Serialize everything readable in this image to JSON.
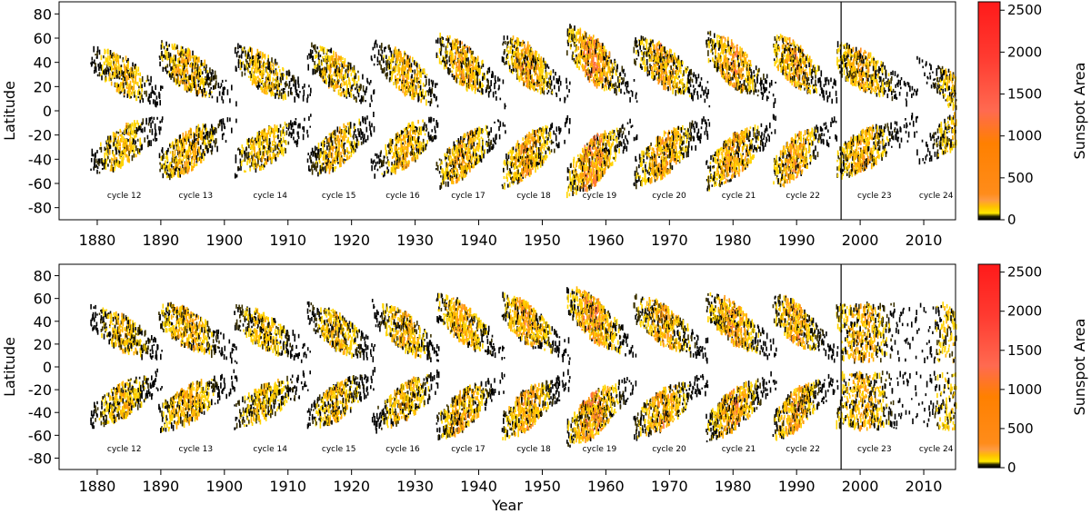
{
  "chart_data": [
    {
      "type": "heatmap",
      "panel": "top",
      "title": "",
      "xlabel": "",
      "ylabel": "Latitude",
      "xlim": [
        1874,
        2015
      ],
      "ylim": [
        -90,
        90
      ],
      "x_ticks": [
        1880,
        1890,
        1900,
        1910,
        1920,
        1930,
        1940,
        1950,
        1960,
        1970,
        1980,
        1990,
        2000,
        2010
      ],
      "y_ticks": [
        80,
        60,
        40,
        20,
        0,
        -20,
        -40,
        -60,
        -80
      ],
      "vertical_line_year": 1997,
      "colorbar": {
        "label": "Sunspot Area",
        "ticks": [
          0,
          500,
          1000,
          1500,
          2000,
          2500
        ],
        "range": [
          0,
          2600
        ]
      },
      "cycles": [
        {
          "label": "cycle 12",
          "start": 1878.9,
          "end": 1890.2,
          "peak": 1883.9,
          "amplitude": 0.75,
          "max_lat": 40
        },
        {
          "label": "cycle 13",
          "start": 1889.6,
          "end": 1902.0,
          "peak": 1894.1,
          "amplitude": 0.85,
          "max_lat": 42
        },
        {
          "label": "cycle 14",
          "start": 1901.5,
          "end": 1913.5,
          "peak": 1906.2,
          "amplitude": 0.7,
          "max_lat": 40
        },
        {
          "label": "cycle 15",
          "start": 1913.0,
          "end": 1923.6,
          "peak": 1917.6,
          "amplitude": 0.8,
          "max_lat": 42
        },
        {
          "label": "cycle 16",
          "start": 1923.0,
          "end": 1933.7,
          "peak": 1928.4,
          "amplitude": 0.85,
          "max_lat": 45
        },
        {
          "label": "cycle 17",
          "start": 1933.2,
          "end": 1944.1,
          "peak": 1937.4,
          "amplitude": 0.95,
          "max_lat": 50
        },
        {
          "label": "cycle 18",
          "start": 1943.6,
          "end": 1954.3,
          "peak": 1947.5,
          "amplitude": 1.0,
          "max_lat": 48
        },
        {
          "label": "cycle 19",
          "start": 1953.8,
          "end": 1964.8,
          "peak": 1957.9,
          "amplitude": 1.2,
          "max_lat": 55
        },
        {
          "label": "cycle 20",
          "start": 1964.3,
          "end": 1976.2,
          "peak": 1968.9,
          "amplitude": 0.95,
          "max_lat": 48
        },
        {
          "label": "cycle 21",
          "start": 1975.7,
          "end": 1986.7,
          "peak": 1979.9,
          "amplitude": 1.05,
          "max_lat": 50
        },
        {
          "label": "cycle 22",
          "start": 1986.2,
          "end": 1996.4,
          "peak": 1989.6,
          "amplitude": 1.0,
          "max_lat": 48
        },
        {
          "label": "cycle 23",
          "start": 1996.2,
          "end": 2008.9,
          "peak": 2000.3,
          "amplitude": 0.85,
          "max_lat": 40
        },
        {
          "label": "cycle 24",
          "start": 2008.5,
          "end": 2016.0,
          "peak": 2014.0,
          "amplitude": 0.6,
          "max_lat": 35
        }
      ]
    },
    {
      "type": "heatmap",
      "panel": "bottom",
      "title": "",
      "xlabel": "Year",
      "ylabel": "Latitude",
      "xlim": [
        1874,
        2015
      ],
      "ylim": [
        -90,
        90
      ],
      "x_ticks": [
        1880,
        1890,
        1900,
        1910,
        1920,
        1930,
        1940,
        1950,
        1960,
        1970,
        1980,
        1990,
        2000,
        2010
      ],
      "y_ticks": [
        80,
        60,
        40,
        20,
        0,
        -20,
        -40,
        -60,
        -80
      ],
      "vertical_line_year": 1997,
      "scattered_after": 1997,
      "colorbar": {
        "label": "Sunspot Area",
        "ticks": [
          0,
          500,
          1000,
          1500,
          2000,
          2500
        ],
        "range": [
          0,
          2600
        ]
      },
      "cycles": [
        {
          "label": "cycle 12",
          "start": 1878.9,
          "end": 1890.2,
          "peak": 1883.9,
          "amplitude": 0.75,
          "max_lat": 40
        },
        {
          "label": "cycle 13",
          "start": 1889.6,
          "end": 1902.0,
          "peak": 1894.1,
          "amplitude": 0.85,
          "max_lat": 42
        },
        {
          "label": "cycle 14",
          "start": 1901.5,
          "end": 1913.5,
          "peak": 1906.2,
          "amplitude": 0.7,
          "max_lat": 40
        },
        {
          "label": "cycle 15",
          "start": 1913.0,
          "end": 1923.6,
          "peak": 1917.6,
          "amplitude": 0.8,
          "max_lat": 42
        },
        {
          "label": "cycle 16",
          "start": 1923.0,
          "end": 1933.7,
          "peak": 1928.4,
          "amplitude": 0.85,
          "max_lat": 45
        },
        {
          "label": "cycle 17",
          "start": 1933.2,
          "end": 1944.1,
          "peak": 1937.4,
          "amplitude": 0.95,
          "max_lat": 50
        },
        {
          "label": "cycle 18",
          "start": 1943.6,
          "end": 1954.3,
          "peak": 1947.5,
          "amplitude": 1.0,
          "max_lat": 48
        },
        {
          "label": "cycle 19",
          "start": 1953.8,
          "end": 1964.8,
          "peak": 1957.9,
          "amplitude": 1.2,
          "max_lat": 55
        },
        {
          "label": "cycle 20",
          "start": 1964.3,
          "end": 1976.2,
          "peak": 1968.9,
          "amplitude": 0.95,
          "max_lat": 48
        },
        {
          "label": "cycle 21",
          "start": 1975.7,
          "end": 1986.7,
          "peak": 1979.9,
          "amplitude": 1.05,
          "max_lat": 50
        },
        {
          "label": "cycle 22",
          "start": 1986.2,
          "end": 1996.4,
          "peak": 1989.6,
          "amplitude": 1.0,
          "max_lat": 48
        },
        {
          "label": "cycle 23",
          "start": 1996.2,
          "end": 2008.9,
          "peak": 2000.3,
          "amplitude": 0.85,
          "max_lat": 40
        },
        {
          "label": "cycle 24",
          "start": 2008.5,
          "end": 2016.0,
          "peak": 2014.0,
          "amplitude": 0.6,
          "max_lat": 35
        }
      ]
    }
  ],
  "colors": {
    "colormap": [
      "#000000",
      "#3a3000",
      "#ffd400",
      "#ffb000",
      "#ff9a10",
      "#ff8c1a",
      "#ff7044",
      "#ff4a30",
      "#ff1a1a"
    ],
    "axis": "#000000",
    "background": "#ffffff"
  }
}
